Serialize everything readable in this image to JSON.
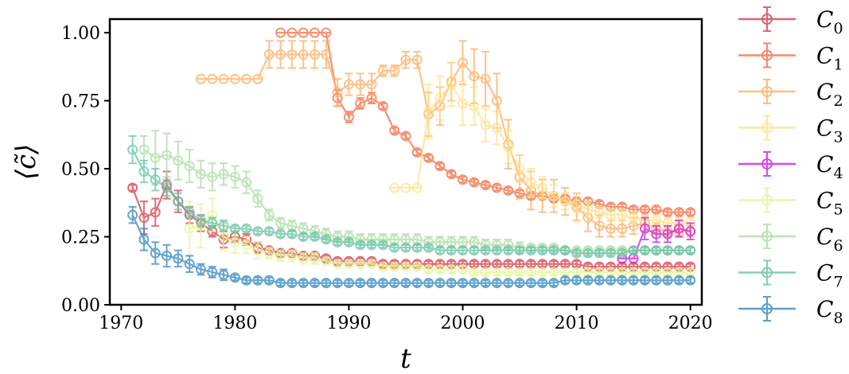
{
  "chart_data": {
    "type": "line",
    "xlabel": "t",
    "ylabel": "⟨c̃⟩",
    "xlim": [
      1969,
      2021
    ],
    "ylim": [
      0.0,
      1.05
    ],
    "xticks": [
      1970,
      1980,
      1990,
      2000,
      2010,
      2020
    ],
    "xtick_labels": [
      "1970",
      "1980",
      "1990",
      "2000",
      "2010",
      "2020"
    ],
    "yticks": [
      0.0,
      0.25,
      0.5,
      0.75,
      1.0
    ],
    "ytick_labels": [
      "0.00",
      "0.25",
      "0.50",
      "0.75",
      "1.00"
    ],
    "grid": false,
    "legend_placement": "outside-right",
    "series": [
      {
        "name": "C0",
        "label_base": "C",
        "label_sub": "0",
        "color": "#d53e4f",
        "x": [
          1971,
          1972,
          1973,
          1974,
          1975,
          1976,
          1977,
          1978,
          1979,
          1980,
          1981,
          1982,
          1983,
          1984,
          1985,
          1986,
          1987,
          1988,
          1989,
          1990,
          1991,
          1992,
          1993,
          1994,
          1995,
          1996,
          1997,
          1998,
          1999,
          2000,
          2001,
          2002,
          2003,
          2004,
          2005,
          2006,
          2007,
          2008,
          2009,
          2010,
          2011,
          2012,
          2013,
          2014,
          2015,
          2016,
          2017,
          2018,
          2019,
          2020
        ],
        "y": [
          0.43,
          0.32,
          0.34,
          0.44,
          0.38,
          0.33,
          0.3,
          0.27,
          0.24,
          0.25,
          0.24,
          0.21,
          0.2,
          0.19,
          0.19,
          0.18,
          0.18,
          0.17,
          0.16,
          0.16,
          0.16,
          0.16,
          0.15,
          0.15,
          0.15,
          0.15,
          0.15,
          0.15,
          0.15,
          0.15,
          0.15,
          0.15,
          0.15,
          0.15,
          0.15,
          0.15,
          0.15,
          0.15,
          0.15,
          0.15,
          0.14,
          0.14,
          0.14,
          0.14,
          0.14,
          0.14,
          0.14,
          0.14,
          0.14,
          0.14
        ],
        "err": [
          0.01,
          0.06,
          0.05,
          0.05,
          0.04,
          0.03,
          0.03,
          0.02,
          0.03,
          0.02,
          0.02,
          0.02,
          0.01,
          0.01,
          0.01,
          0.01,
          0.01,
          0.01,
          0.01,
          0.01,
          0.01,
          0.01,
          0.01,
          0.01,
          0.01,
          0.01,
          0.01,
          0.01,
          0.01,
          0.01,
          0.01,
          0.01,
          0.01,
          0.01,
          0.01,
          0.01,
          0.01,
          0.01,
          0.01,
          0.01,
          0.01,
          0.01,
          0.01,
          0.01,
          0.01,
          0.01,
          0.01,
          0.01,
          0.01,
          0.01
        ]
      },
      {
        "name": "C1",
        "label_base": "C",
        "label_sub": "1",
        "color": "#f46d43",
        "x": [
          1984,
          1985,
          1986,
          1987,
          1988,
          1989,
          1990,
          1991,
          1992,
          1993,
          1994,
          1995,
          1996,
          1997,
          1998,
          1999,
          2000,
          2001,
          2002,
          2003,
          2004,
          2005,
          2006,
          2007,
          2008,
          2009,
          2010,
          2011,
          2012,
          2013,
          2014,
          2015,
          2016,
          2017,
          2018,
          2019,
          2020
        ],
        "y": [
          1.0,
          1.0,
          1.0,
          1.0,
          1.0,
          0.76,
          0.69,
          0.74,
          0.76,
          0.73,
          0.64,
          0.62,
          0.56,
          0.54,
          0.51,
          0.48,
          0.46,
          0.45,
          0.44,
          0.43,
          0.42,
          0.41,
          0.4,
          0.4,
          0.39,
          0.39,
          0.38,
          0.38,
          0.37,
          0.36,
          0.36,
          0.35,
          0.35,
          0.35,
          0.34,
          0.34,
          0.34
        ],
        "err": [
          0,
          0,
          0,
          0,
          0,
          0.03,
          0.02,
          0.02,
          0.02,
          0.01,
          0.01,
          0.01,
          0.01,
          0.01,
          0.01,
          0.01,
          0.01,
          0.01,
          0.01,
          0.01,
          0.01,
          0.01,
          0.01,
          0.01,
          0.01,
          0.01,
          0.01,
          0.01,
          0.01,
          0.01,
          0.01,
          0.01,
          0.01,
          0.01,
          0.01,
          0.01,
          0.01
        ]
      },
      {
        "name": "C2",
        "label_base": "C",
        "label_sub": "2",
        "color": "#fdae61",
        "x": [
          1977,
          1978,
          1979,
          1980,
          1981,
          1982,
          1983,
          1984,
          1985,
          1986,
          1987,
          1988,
          1989,
          1990,
          1991,
          1992,
          1993,
          1994,
          1995,
          1996,
          1997,
          1998,
          1999,
          2000,
          2001,
          2002,
          2003,
          2004,
          2005,
          2006,
          2007,
          2008,
          2009,
          2010,
          2011,
          2012,
          2013,
          2014,
          2015,
          2016,
          2017,
          2018,
          2019,
          2020
        ],
        "y": [
          0.83,
          0.83,
          0.83,
          0.83,
          0.83,
          0.83,
          0.92,
          0.92,
          0.92,
          0.92,
          0.92,
          0.92,
          0.78,
          0.81,
          0.81,
          0.81,
          0.86,
          0.86,
          0.9,
          0.9,
          0.7,
          0.73,
          0.82,
          0.89,
          0.84,
          0.83,
          0.75,
          0.59,
          0.47,
          0.42,
          0.4,
          0.4,
          0.38,
          0.36,
          0.32,
          0.29,
          0.28,
          0.28,
          0.29,
          0.3,
          0.28,
          0.27,
          0.27,
          0.27
        ],
        "err": [
          0,
          0,
          0,
          0,
          0,
          0,
          0.05,
          0.05,
          0.05,
          0.05,
          0.05,
          0.05,
          0.05,
          0.04,
          0.04,
          0.04,
          0.02,
          0.02,
          0.03,
          0.03,
          0.08,
          0.07,
          0.07,
          0.08,
          0.1,
          0.1,
          0.1,
          0.09,
          0.08,
          0.07,
          0.06,
          0.06,
          0.05,
          0.05,
          0.05,
          0.04,
          0.03,
          0.03,
          0.03,
          0.03,
          0.02,
          0.02,
          0.02,
          0.02
        ]
      },
      {
        "name": "C3",
        "label_base": "C",
        "label_sub": "3",
        "color": "#fee08b",
        "x": [
          1994,
          1995,
          1996,
          1997,
          1998,
          1999,
          2000,
          2001,
          2002,
          2003,
          2004,
          2005,
          2006,
          2007,
          2008,
          2009,
          2010,
          2011,
          2012,
          2013,
          2014,
          2015,
          2016,
          2017,
          2018,
          2019,
          2020
        ],
        "y": [
          0.43,
          0.43,
          0.43,
          0.71,
          0.76,
          0.81,
          0.74,
          0.73,
          0.66,
          0.65,
          0.58,
          0.5,
          0.45,
          0.43,
          0.4,
          0.38,
          0.37,
          0.35,
          0.34,
          0.33,
          0.33,
          0.32,
          0.31,
          0.31,
          0.3,
          0.3,
          0.3
        ],
        "err": [
          0,
          0,
          0,
          0.1,
          0.08,
          0.08,
          0.08,
          0.07,
          0.06,
          0.06,
          0.06,
          0.05,
          0.05,
          0.04,
          0.04,
          0.03,
          0.03,
          0.03,
          0.02,
          0.02,
          0.02,
          0.02,
          0.02,
          0.02,
          0.02,
          0.02,
          0.02
        ]
      },
      {
        "name": "C4",
        "label_base": "C",
        "label_sub": "4",
        "color": "#d01cdf",
        "x": [
          2014,
          2015,
          2016,
          2017,
          2018,
          2019,
          2020
        ],
        "y": [
          0.17,
          0.17,
          0.28,
          0.26,
          0.26,
          0.28,
          0.27
        ],
        "err": [
          0,
          0,
          0.04,
          0.03,
          0.03,
          0.03,
          0.03
        ]
      },
      {
        "name": "C5",
        "label_base": "C",
        "label_sub": "5",
        "color": "#e6f598",
        "x": [
          1976,
          1977,
          1978,
          1979,
          1980,
          1981,
          1982,
          1983,
          1984,
          1985,
          1986,
          1987,
          1988,
          1989,
          1990,
          1991,
          1992,
          1993,
          1994,
          1995,
          1996,
          1997,
          1998,
          1999,
          2000,
          2001,
          2002,
          2003,
          2004,
          2005,
          2006,
          2007,
          2008,
          2009,
          2010,
          2011,
          2012,
          2013,
          2014,
          2015,
          2016,
          2017,
          2018,
          2019,
          2020
        ],
        "y": [
          0.28,
          0.29,
          0.33,
          0.25,
          0.23,
          0.22,
          0.2,
          0.19,
          0.18,
          0.18,
          0.17,
          0.17,
          0.16,
          0.15,
          0.15,
          0.15,
          0.15,
          0.14,
          0.14,
          0.14,
          0.14,
          0.13,
          0.13,
          0.13,
          0.13,
          0.12,
          0.12,
          0.12,
          0.12,
          0.12,
          0.12,
          0.12,
          0.12,
          0.12,
          0.12,
          0.12,
          0.12,
          0.12,
          0.12,
          0.12,
          0.12,
          0.12,
          0.12,
          0.12,
          0.12
        ],
        "err": [
          0.1,
          0.08,
          0.06,
          0.05,
          0.04,
          0.03,
          0.03,
          0.02,
          0.02,
          0.02,
          0.02,
          0.02,
          0.01,
          0.01,
          0.01,
          0.01,
          0.01,
          0.01,
          0.01,
          0.01,
          0.01,
          0.01,
          0.01,
          0.01,
          0.01,
          0.01,
          0.01,
          0.01,
          0.01,
          0.01,
          0.01,
          0.01,
          0.01,
          0.01,
          0.01,
          0.01,
          0.01,
          0.01,
          0.01,
          0.01,
          0.01,
          0.01,
          0.01,
          0.01,
          0.01
        ]
      },
      {
        "name": "C6",
        "label_base": "C",
        "label_sub": "6",
        "color": "#abdda4",
        "x": [
          1972,
          1973,
          1974,
          1975,
          1976,
          1977,
          1978,
          1979,
          1980,
          1981,
          1982,
          1983,
          1984,
          1985,
          1986,
          1987,
          1988,
          1989,
          1990,
          1991,
          1992,
          1993,
          1994,
          1995,
          1996,
          1997,
          1998,
          1999,
          2000,
          2001,
          2002,
          2003,
          2004,
          2005,
          2006,
          2007,
          2008,
          2009,
          2010,
          2011,
          2012,
          2013,
          2014,
          2015,
          2016,
          2017,
          2018,
          2019,
          2020
        ],
        "y": [
          0.57,
          0.54,
          0.55,
          0.53,
          0.51,
          0.48,
          0.47,
          0.48,
          0.47,
          0.45,
          0.39,
          0.33,
          0.3,
          0.29,
          0.28,
          0.27,
          0.26,
          0.25,
          0.25,
          0.24,
          0.24,
          0.24,
          0.24,
          0.24,
          0.24,
          0.23,
          0.23,
          0.23,
          0.23,
          0.23,
          0.22,
          0.22,
          0.22,
          0.21,
          0.21,
          0.21,
          0.21,
          0.2,
          0.2,
          0.2,
          0.2,
          0.2,
          0.2,
          0.2,
          0.2,
          0.2,
          0.2,
          0.2,
          0.2
        ],
        "err": [
          0.05,
          0.1,
          0.08,
          0.07,
          0.06,
          0.05,
          0.05,
          0.04,
          0.04,
          0.04,
          0.03,
          0.02,
          0.02,
          0.02,
          0.02,
          0.02,
          0.02,
          0.02,
          0.02,
          0.02,
          0.02,
          0.02,
          0.02,
          0.02,
          0.02,
          0.02,
          0.02,
          0.02,
          0.02,
          0.02,
          0.02,
          0.02,
          0.02,
          0.02,
          0.01,
          0.01,
          0.01,
          0.01,
          0.01,
          0.01,
          0.01,
          0.01,
          0.01,
          0.01,
          0.01,
          0.01,
          0.01,
          0.01,
          0.01
        ]
      },
      {
        "name": "C7",
        "label_base": "C",
        "label_sub": "7",
        "color": "#66c2a5",
        "x": [
          1971,
          1972,
          1973,
          1974,
          1975,
          1976,
          1977,
          1978,
          1979,
          1980,
          1981,
          1982,
          1983,
          1984,
          1985,
          1986,
          1987,
          1988,
          1989,
          1990,
          1991,
          1992,
          1993,
          1994,
          1995,
          1996,
          1997,
          1998,
          1999,
          2000,
          2001,
          2002,
          2003,
          2004,
          2005,
          2006,
          2007,
          2008,
          2009,
          2010,
          2011,
          2012,
          2013,
          2014,
          2015,
          2016,
          2017,
          2018,
          2019,
          2020
        ],
        "y": [
          0.57,
          0.49,
          0.46,
          0.43,
          0.38,
          0.34,
          0.31,
          0.3,
          0.29,
          0.28,
          0.28,
          0.27,
          0.27,
          0.26,
          0.26,
          0.25,
          0.25,
          0.24,
          0.23,
          0.23,
          0.22,
          0.22,
          0.22,
          0.21,
          0.21,
          0.21,
          0.21,
          0.2,
          0.2,
          0.2,
          0.2,
          0.2,
          0.2,
          0.2,
          0.2,
          0.2,
          0.2,
          0.2,
          0.2,
          0.19,
          0.19,
          0.19,
          0.19,
          0.19,
          0.2,
          0.2,
          0.2,
          0.2,
          0.2,
          0.2
        ],
        "err": [
          0.05,
          0.04,
          0.04,
          0.03,
          0.03,
          0.02,
          0.02,
          0.02,
          0.02,
          0.01,
          0.01,
          0.01,
          0.01,
          0.01,
          0.01,
          0.01,
          0.01,
          0.01,
          0.01,
          0.01,
          0.01,
          0.01,
          0.01,
          0.01,
          0.01,
          0.01,
          0.01,
          0.01,
          0.01,
          0.01,
          0.01,
          0.01,
          0.01,
          0.01,
          0.01,
          0.01,
          0.01,
          0.01,
          0.01,
          0.01,
          0.01,
          0.01,
          0.01,
          0.01,
          0.01,
          0.01,
          0.01,
          0.01,
          0.01,
          0.01
        ]
      },
      {
        "name": "C8",
        "label_base": "C",
        "label_sub": "8",
        "color": "#3288bd",
        "x": [
          1971,
          1972,
          1973,
          1974,
          1975,
          1976,
          1977,
          1978,
          1979,
          1980,
          1981,
          1982,
          1983,
          1984,
          1985,
          1986,
          1987,
          1988,
          1989,
          1990,
          1991,
          1992,
          1993,
          1994,
          1995,
          1996,
          1997,
          1998,
          1999,
          2000,
          2001,
          2002,
          2003,
          2004,
          2005,
          2006,
          2007,
          2008,
          2009,
          2010,
          2011,
          2012,
          2013,
          2014,
          2015,
          2016,
          2017,
          2018,
          2019,
          2020
        ],
        "y": [
          0.33,
          0.24,
          0.19,
          0.18,
          0.17,
          0.15,
          0.13,
          0.12,
          0.11,
          0.1,
          0.09,
          0.09,
          0.09,
          0.08,
          0.08,
          0.08,
          0.08,
          0.08,
          0.08,
          0.08,
          0.08,
          0.08,
          0.08,
          0.08,
          0.08,
          0.08,
          0.08,
          0.08,
          0.08,
          0.08,
          0.08,
          0.08,
          0.08,
          0.08,
          0.08,
          0.08,
          0.08,
          0.08,
          0.09,
          0.09,
          0.09,
          0.09,
          0.09,
          0.09,
          0.09,
          0.09,
          0.09,
          0.09,
          0.09,
          0.09
        ],
        "err": [
          0.03,
          0.04,
          0.04,
          0.04,
          0.03,
          0.03,
          0.02,
          0.02,
          0.02,
          0.01,
          0.01,
          0.01,
          0.01,
          0.01,
          0.01,
          0.01,
          0.01,
          0.01,
          0.01,
          0.01,
          0.01,
          0.01,
          0.01,
          0.01,
          0.01,
          0.01,
          0.01,
          0.01,
          0.01,
          0.01,
          0.01,
          0.01,
          0.01,
          0.01,
          0.01,
          0.01,
          0.01,
          0.01,
          0.01,
          0.01,
          0.01,
          0.01,
          0.01,
          0.01,
          0.01,
          0.01,
          0.01,
          0.01,
          0.01,
          0.01
        ]
      }
    ]
  }
}
